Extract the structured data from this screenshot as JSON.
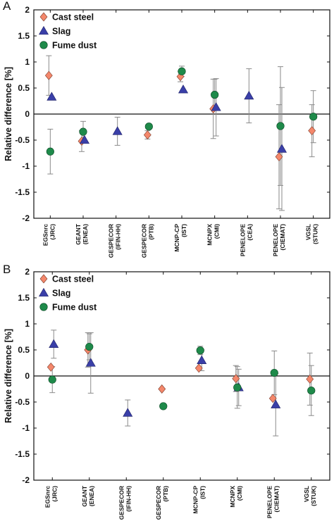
{
  "chart_data": [
    {
      "panel": "A",
      "type": "scatter",
      "title": "",
      "xlabel": "",
      "ylabel": "Relative difference [%]",
      "ylim": [
        -2,
        2
      ],
      "yticks": [
        "2",
        "1.5",
        "1",
        "0.5",
        "0",
        "-0.5",
        "-1",
        "-1.5",
        "-2"
      ],
      "grid": false,
      "legend_position": "top-left",
      "categories": [
        [
          "EGSnrc",
          "(JRC)"
        ],
        [
          "GEANT",
          "(ENEA)"
        ],
        [
          "GESPECOR",
          "(IFIN-HH)"
        ],
        [
          "GESPECOR",
          "(PTB)"
        ],
        [
          "MCNP-CP",
          "(IST)"
        ],
        [
          "MCNPX",
          "(CMI)"
        ],
        [
          "PENELOPE",
          "(CEA)"
        ],
        [
          "PENELOPE",
          "(CIEMAT)"
        ],
        [
          "VGSL",
          "(STUK)"
        ]
      ],
      "series": [
        {
          "name": "Cast steel",
          "marker": "diamond",
          "color": "#f4876b",
          "values": [
            0.74,
            -0.52,
            null,
            -0.4,
            0.72,
            0.1,
            null,
            -0.82,
            -0.32
          ],
          "errors": [
            0.38,
            0.2,
            null,
            0.08,
            0.1,
            0.57,
            null,
            1.0,
            0.5
          ]
        },
        {
          "name": "Slag",
          "marker": "triangle",
          "color": "#3a3fa8",
          "values": [
            0.33,
            -0.5,
            -0.33,
            null,
            0.47,
            0.13,
            0.35,
            -0.67,
            null
          ],
          "errors": [
            null,
            null,
            0.27,
            null,
            null,
            0.55,
            0.52,
            1.18,
            null
          ]
        },
        {
          "name": "Fume dust",
          "marker": "circle",
          "color": "#1e8a4a",
          "values": [
            -0.72,
            -0.34,
            null,
            -0.24,
            0.82,
            0.37,
            null,
            -0.23,
            -0.05
          ],
          "errors": [
            0.43,
            0.2,
            null,
            null,
            0.1,
            0.3,
            null,
            1.14,
            0.5
          ]
        }
      ]
    },
    {
      "panel": "B",
      "type": "scatter",
      "title": "",
      "xlabel": "",
      "ylabel": "Relative difference [%]",
      "ylim": [
        -2,
        2
      ],
      "yticks": [
        "2",
        "1.5",
        "1",
        "0.5",
        "0",
        "-0.5",
        "-1",
        "-1.5",
        "-2"
      ],
      "grid": false,
      "legend_position": "top-left",
      "categories": [
        [
          "EGSnrc",
          "(JRC)"
        ],
        [
          "GEANT",
          "(ENEA)"
        ],
        [
          "GESPECOR",
          "(IFIN-HH)"
        ],
        [
          "GESPECOR",
          "(PTB)"
        ],
        [
          "MCNP-CP",
          "(IST)"
        ],
        [
          "MCNPX",
          "(CMI)"
        ],
        [
          "PENELOPE",
          "(CIEMAT)"
        ],
        [
          "VGSL",
          "(STUK)"
        ]
      ],
      "series": [
        {
          "name": "Cast steel",
          "marker": "diamond",
          "color": "#f4876b",
          "values": [
            0.17,
            0.5,
            null,
            -0.25,
            0.15,
            -0.05,
            -0.43,
            -0.06
          ],
          "errors": [
            null,
            0.33,
            null,
            null,
            null,
            0.25,
            null,
            0.5
          ]
        },
        {
          "name": "Slag",
          "marker": "triangle",
          "color": "#3a3fa8",
          "values": [
            0.61,
            0.25,
            -0.71,
            null,
            0.3,
            -0.22,
            -0.55,
            null
          ],
          "errors": [
            0.27,
            0.58,
            0.25,
            null,
            0.2,
            0.35,
            0.6,
            null
          ]
        },
        {
          "name": "Fume dust",
          "marker": "circle",
          "color": "#1e8a4a",
          "values": [
            -0.07,
            0.56,
            null,
            -0.58,
            0.49,
            -0.22,
            0.06,
            -0.28
          ],
          "errors": [
            0.25,
            0.25,
            null,
            null,
            0.08,
            0.4,
            0.42,
            0.48
          ]
        }
      ]
    }
  ]
}
